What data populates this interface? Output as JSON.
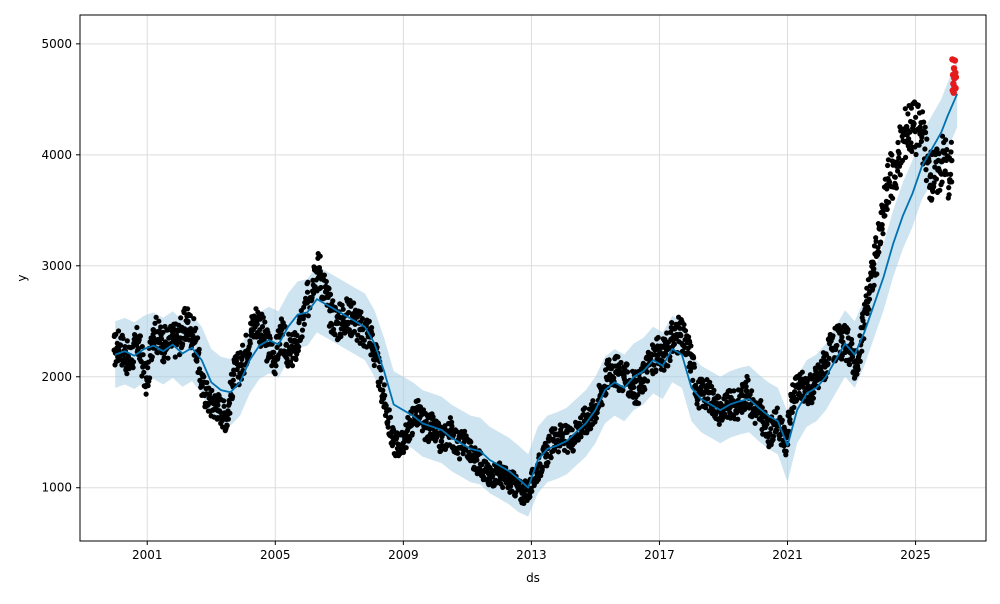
{
  "chart_data": {
    "type": "line",
    "title": "",
    "xlabel": "ds",
    "ylabel": "y",
    "xlim": [
      1998.9,
      2027.2
    ],
    "ylim": [
      520,
      5260
    ],
    "x_ticks": [
      2001,
      2005,
      2009,
      2013,
      2017,
      2021,
      2025
    ],
    "x_tick_labels": [
      "2001",
      "2005",
      "2009",
      "2013",
      "2017",
      "2021",
      "2025"
    ],
    "y_ticks": [
      1000,
      2000,
      3000,
      4000,
      5000
    ],
    "y_tick_labels": [
      "1000",
      "2000",
      "3000",
      "4000",
      "5000"
    ],
    "grid": true,
    "legend": "none",
    "colors": {
      "observed": "#000000",
      "forecast": "#0072B2",
      "interval": "#a6cde6",
      "highlight": "#e41a1c",
      "grid": "#dddddd"
    },
    "series": [
      {
        "role": "forecast",
        "style": "line",
        "x": [
          2000.0,
          2000.3,
          2000.6,
          2000.9,
          2001.2,
          2001.5,
          2001.8,
          2002.1,
          2002.4,
          2002.7,
          2003.0,
          2003.3,
          2003.6,
          2003.9,
          2004.2,
          2004.5,
          2004.8,
          2005.1,
          2005.4,
          2005.7,
          2006.0,
          2006.3,
          2006.6,
          2006.9,
          2007.2,
          2007.5,
          2007.8,
          2008.1,
          2008.4,
          2008.7,
          2009.0,
          2009.3,
          2009.6,
          2009.9,
          2010.2,
          2010.5,
          2010.8,
          2011.1,
          2011.4,
          2011.7,
          2012.0,
          2012.3,
          2012.6,
          2012.9,
          2013.2,
          2013.5,
          2013.8,
          2014.1,
          2014.4,
          2014.7,
          2015.0,
          2015.3,
          2015.6,
          2015.9,
          2016.2,
          2016.5,
          2016.8,
          2017.1,
          2017.4,
          2017.7,
          2018.0,
          2018.3,
          2018.6,
          2018.9,
          2019.2,
          2019.5,
          2019.8,
          2020.1,
          2020.4,
          2020.7,
          2021.0,
          2021.3,
          2021.6,
          2021.9,
          2022.2,
          2022.5,
          2022.8,
          2023.1,
          2023.4,
          2023.7,
          2024.0,
          2024.3,
          2024.6,
          2024.9,
          2025.2,
          2025.5,
          2025.8,
          2026.0,
          2026.3
        ],
        "y": [
          2200,
          2230,
          2190,
          2250,
          2280,
          2230,
          2290,
          2210,
          2260,
          2150,
          1950,
          1880,
          1860,
          1950,
          2150,
          2280,
          2330,
          2290,
          2450,
          2560,
          2580,
          2700,
          2650,
          2600,
          2550,
          2500,
          2450,
          2300,
          2050,
          1750,
          1700,
          1650,
          1580,
          1550,
          1520,
          1450,
          1400,
          1350,
          1330,
          1250,
          1200,
          1150,
          1080,
          1000,
          1250,
          1350,
          1380,
          1420,
          1500,
          1580,
          1700,
          1880,
          1950,
          1900,
          2000,
          2050,
          2150,
          2100,
          2250,
          2200,
          1900,
          1800,
          1750,
          1700,
          1750,
          1780,
          1800,
          1720,
          1650,
          1600,
          1380,
          1700,
          1850,
          1900,
          2000,
          2150,
          2300,
          2200,
          2400,
          2650,
          2900,
          3200,
          3450,
          3650,
          3900,
          4050,
          4200,
          4350,
          4550
        ]
      },
      {
        "role": "uncertainty-band",
        "style": "band",
        "x": [
          2000.0,
          2000.3,
          2000.6,
          2000.9,
          2001.2,
          2001.5,
          2001.8,
          2002.1,
          2002.4,
          2002.7,
          2003.0,
          2003.3,
          2003.6,
          2003.9,
          2004.2,
          2004.5,
          2004.8,
          2005.1,
          2005.4,
          2005.7,
          2006.0,
          2006.3,
          2006.6,
          2006.9,
          2007.2,
          2007.5,
          2007.8,
          2008.1,
          2008.4,
          2008.7,
          2009.0,
          2009.3,
          2009.6,
          2009.9,
          2010.2,
          2010.5,
          2010.8,
          2011.1,
          2011.4,
          2011.7,
          2012.0,
          2012.3,
          2012.6,
          2012.9,
          2013.2,
          2013.5,
          2013.8,
          2014.1,
          2014.4,
          2014.7,
          2015.0,
          2015.3,
          2015.6,
          2015.9,
          2016.2,
          2016.5,
          2016.8,
          2017.1,
          2017.4,
          2017.7,
          2018.0,
          2018.3,
          2018.6,
          2018.9,
          2019.2,
          2019.5,
          2019.8,
          2020.1,
          2020.4,
          2020.7,
          2021.0,
          2021.3,
          2021.6,
          2021.9,
          2022.2,
          2022.5,
          2022.8,
          2023.1,
          2023.4,
          2023.7,
          2024.0,
          2024.3,
          2024.6,
          2024.9,
          2025.2,
          2025.5,
          2025.8,
          2026.0,
          2026.3
        ],
        "lower": [
          1900,
          1930,
          1890,
          1950,
          1980,
          1930,
          1990,
          1910,
          1960,
          1850,
          1650,
          1580,
          1560,
          1650,
          1850,
          1980,
          2030,
          1990,
          2150,
          2260,
          2280,
          2400,
          2350,
          2300,
          2250,
          2200,
          2150,
          2000,
          1750,
          1450,
          1400,
          1350,
          1280,
          1250,
          1220,
          1150,
          1100,
          1050,
          1030,
          950,
          900,
          850,
          780,
          740,
          950,
          1050,
          1080,
          1120,
          1200,
          1280,
          1400,
          1580,
          1650,
          1600,
          1700,
          1750,
          1850,
          1800,
          1950,
          1900,
          1600,
          1500,
          1450,
          1400,
          1450,
          1480,
          1500,
          1420,
          1350,
          1300,
          1050,
          1400,
          1550,
          1600,
          1700,
          1850,
          2000,
          1900,
          2100,
          2350,
          2600,
          2900,
          3150,
          3350,
          3600,
          3750,
          3900,
          4050,
          4250
        ],
        "upper": [
          2500,
          2530,
          2490,
          2550,
          2580,
          2530,
          2590,
          2510,
          2560,
          2450,
          2250,
          2180,
          2160,
          2250,
          2450,
          2580,
          2630,
          2590,
          2750,
          2860,
          2880,
          3000,
          2950,
          2900,
          2850,
          2800,
          2750,
          2600,
          2350,
          2050,
          2000,
          1950,
          1880,
          1850,
          1820,
          1750,
          1700,
          1650,
          1630,
          1550,
          1500,
          1450,
          1380,
          1300,
          1550,
          1650,
          1680,
          1720,
          1800,
          1880,
          2000,
          2180,
          2250,
          2200,
          2300,
          2350,
          2450,
          2400,
          2550,
          2500,
          2200,
          2100,
          2050,
          2000,
          2050,
          2080,
          2100,
          2020,
          1950,
          1900,
          1680,
          2000,
          2150,
          2200,
          2300,
          2450,
          2600,
          2500,
          2700,
          2950,
          3200,
          3500,
          3750,
          3950,
          4200,
          4350,
          4500,
          4650,
          4850
        ]
      },
      {
        "role": "observed",
        "style": "scatter",
        "x": [
          1999.97,
          2000.16,
          2000.43,
          2000.72,
          2000.99,
          2001.19,
          2001.5,
          2001.83,
          2001.97,
          2002.26,
          2002.51,
          2002.71,
          2002.97,
          2003.2,
          2003.49,
          2003.7,
          2003.94,
          2004.26,
          2004.43,
          2004.74,
          2005.0,
          2005.17,
          2005.46,
          2005.68,
          2006.0,
          2006.23,
          2006.4,
          2006.71,
          2006.96,
          2007.16,
          2007.47,
          2007.65,
          2007.94,
          2008.15,
          2008.43,
          2008.68,
          2008.96,
          2009.21,
          2009.4,
          2009.71,
          2009.91,
          2010.19,
          2010.48,
          2010.73,
          2010.93,
          2011.2,
          2011.45,
          2011.69,
          2011.9,
          2012.23,
          2012.38,
          2012.71,
          2012.92,
          2013.23,
          2013.47,
          2013.68,
          2013.96,
          2014.24,
          2014.47,
          2014.66,
          2014.92,
          2015.15,
          2015.46,
          2015.64,
          2015.89,
          2016.19,
          2016.37,
          2016.64,
          2016.96,
          2017.18,
          2017.42,
          2017.64,
          2017.96,
          2018.21,
          2018.44,
          2018.7,
          2018.89,
          2019.21,
          2019.42,
          2019.72,
          2019.96,
          2020.14,
          2020.41,
          2020.69,
          2020.95,
          2021.14,
          2021.38,
          2021.72,
          2021.94,
          2022.13,
          2022.38,
          2022.68,
          2022.9,
          2023.2,
          2023.43,
          2023.69,
          2023.95,
          2024.11,
          2024.41,
          2024.72,
          2024.93,
          2025.17,
          2025.46,
          2025.7,
          2025.9,
          2026.07,
          2026.13
        ],
        "y": [
          2239,
          2285,
          2138,
          2315,
          1927,
          2423,
          2290,
          2329,
          2346,
          2491,
          2329,
          1918,
          1766,
          1745,
          1627,
          2023,
          2102,
          2422,
          2523,
          2290,
          2171,
          2378,
          2205,
          2290,
          2669,
          2963,
          2950,
          2595,
          2483,
          2546,
          2535,
          2425,
          2401,
          2157,
          1753,
          1419,
          1386,
          1561,
          1689,
          1542,
          1537,
          1419,
          1516,
          1358,
          1432,
          1261,
          1209,
          1089,
          1148,
          1070,
          1054,
          952,
          978,
          1195,
          1304,
          1431,
          1455,
          1421,
          1545,
          1600,
          1667,
          1823,
          2083,
          2042,
          2001,
          1905,
          1902,
          2105,
          2197,
          2212,
          2352,
          2382,
          2205,
          1844,
          1863,
          1780,
          1700,
          1744,
          1737,
          1873,
          1700,
          1676,
          1483,
          1601,
          1397,
          1788,
          1915,
          1893,
          1980,
          2099,
          2251,
          2324,
          2274,
          2065,
          2609,
          2972,
          3369,
          3727,
          3898,
          4253,
          4267,
          4219,
          3805,
          3863,
          4017,
          3775,
          3949
        ]
      },
      {
        "role": "highlighted",
        "style": "scatter",
        "x": [
          2026.15,
          2026.16,
          2026.17,
          2026.18,
          2026.19,
          2026.2,
          2026.21,
          2026.22,
          2026.23,
          2026.24,
          2026.25,
          2026.26
        ],
        "y": [
          4860,
          4580,
          4720,
          4640,
          4560,
          4780,
          4690,
          4610,
          4850,
          4740,
          4600,
          4700
        ]
      }
    ]
  }
}
